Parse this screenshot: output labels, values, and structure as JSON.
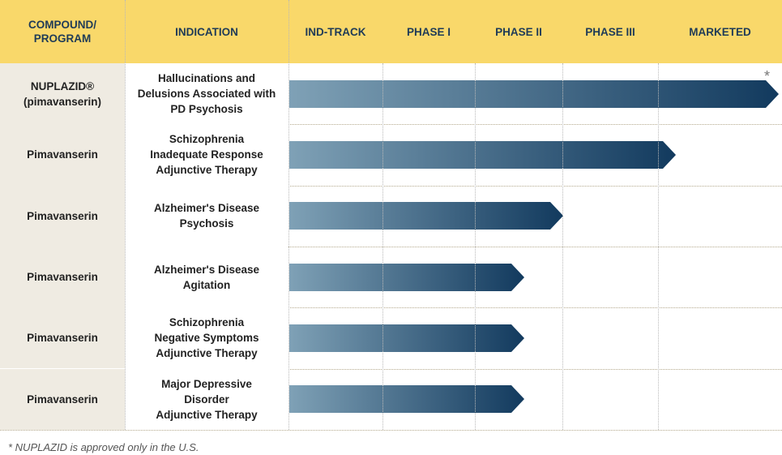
{
  "header": {
    "program": "COMPOUND/\nPROGRAM",
    "indication": "INDICATION",
    "phases": [
      "IND-TRACK",
      "PHASE I",
      "PHASE II",
      "PHASE III",
      "MARKETED"
    ]
  },
  "rows": [
    {
      "compound": "NUPLAZID®\n(pimavanserin)",
      "indication": "Hallucinations and\nDelusions Associated with\nPD Psychosis",
      "stage": "MARKETED",
      "progress": 1.0
    },
    {
      "compound": "Pimavanserin",
      "indication": "Schizophrenia\nInadequate Response\nAdjunctive Therapy",
      "stage": "PHASE III",
      "progress": 0.79
    },
    {
      "compound": "Pimavanserin",
      "indication": "Alzheimer's Disease\nPsychosis",
      "stage": "PHASE II",
      "progress": 0.56
    },
    {
      "compound": "Pimavanserin",
      "indication": "Alzheimer's Disease\nAgitation",
      "stage": "PHASE II",
      "progress": 0.48
    },
    {
      "compound": "Pimavanserin",
      "indication": "Schizophrenia\nNegative Symptoms\nAdjunctive Therapy",
      "stage": "PHASE II",
      "progress": 0.48
    },
    {
      "compound": "Pimavanserin",
      "indication": "Major Depressive\nDisorder\nAdjunctive Therapy",
      "stage": "PHASE II",
      "progress": 0.48
    }
  ],
  "asterisk": "*",
  "footnote": "* NUPLAZID is approved only in the U.S.",
  "colors": {
    "header_bg": "#f9d86a",
    "label_bg": "#efebe2",
    "bar_start": "#7fa1b6",
    "bar_end": "#123a5e"
  }
}
